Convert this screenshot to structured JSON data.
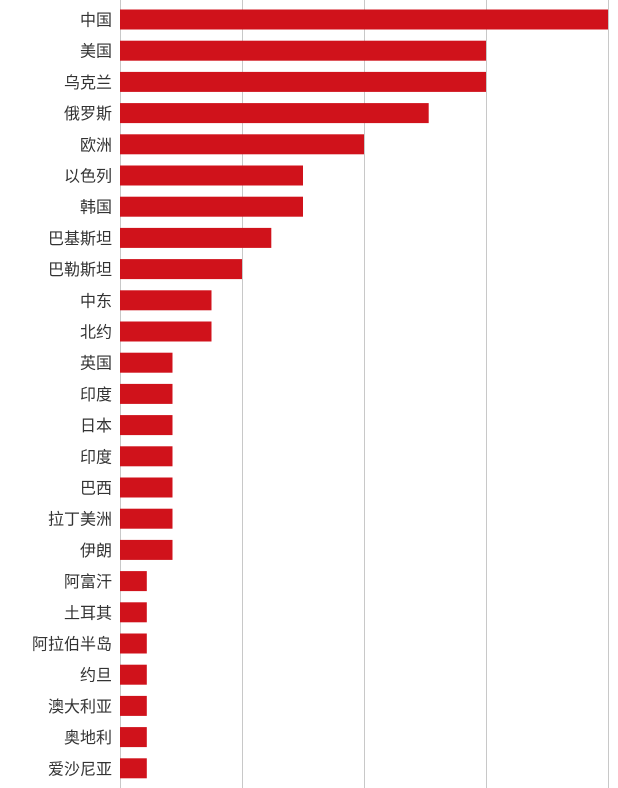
{
  "chart_data": {
    "type": "bar",
    "orientation": "horizontal",
    "title": "",
    "xlabel": "",
    "ylabel": "",
    "grid": true,
    "legend": "none",
    "xlim": [
      0,
      4
    ],
    "bar_color": "#d0121b",
    "grid_color": "#c8c8c8",
    "categories": [
      "中国",
      "美国",
      "乌克兰",
      "俄罗斯",
      "欧洲",
      "以色列",
      "韩国",
      "巴基斯坦",
      "巴勒斯坦",
      "中东",
      "北约",
      "英国",
      "印度",
      "日本",
      "印度",
      "巴西",
      "拉丁美洲",
      "伊朗",
      "阿富汗",
      "土耳其",
      "阿拉伯半岛",
      "约旦",
      "澳大利亚",
      "奥地利",
      "爱沙尼亚"
    ],
    "values": [
      4,
      3,
      3,
      2.53,
      2,
      1.5,
      1.5,
      1.24,
      1,
      0.75,
      0.75,
      0.43,
      0.43,
      0.43,
      0.43,
      0.43,
      0.43,
      0.43,
      0.22,
      0.22,
      0.22,
      0.22,
      0.22,
      0.22,
      0.22
    ]
  }
}
